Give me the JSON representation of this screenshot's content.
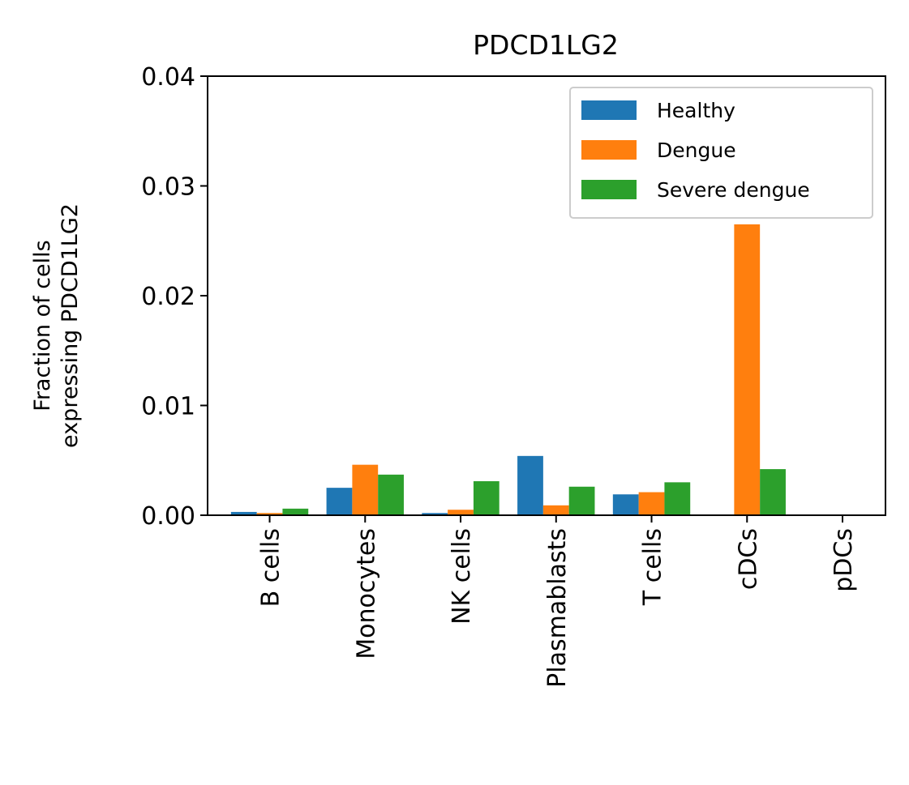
{
  "chart_data": {
    "type": "bar",
    "title": "PDCD1LG2",
    "ylabel_lines": [
      "Fraction of cells",
      "expressing PDCD1LG2"
    ],
    "xlabel": "",
    "categories": [
      "B cells",
      "Monocytes",
      "NK cells",
      "Plasmablasts",
      "T cells",
      "cDCs",
      "pDCs"
    ],
    "ylim": [
      0,
      0.04
    ],
    "yticks": [
      "0.00",
      "0.01",
      "0.02",
      "0.03",
      "0.04"
    ],
    "grid": false,
    "legend_position": "top-right",
    "series": [
      {
        "name": "Healthy",
        "color": "#1f77b4",
        "values": [
          0.0003,
          0.0025,
          0.0002,
          0.0054,
          0.0019,
          0.0,
          0.0
        ]
      },
      {
        "name": "Dengue",
        "color": "#ff7f0e",
        "values": [
          0.0002,
          0.0046,
          0.0005,
          0.0009,
          0.0021,
          0.0265,
          0.0
        ]
      },
      {
        "name": "Severe dengue",
        "color": "#2ca02c",
        "values": [
          0.0006,
          0.0037,
          0.0031,
          0.0026,
          0.003,
          0.0042,
          0.0
        ]
      }
    ]
  }
}
